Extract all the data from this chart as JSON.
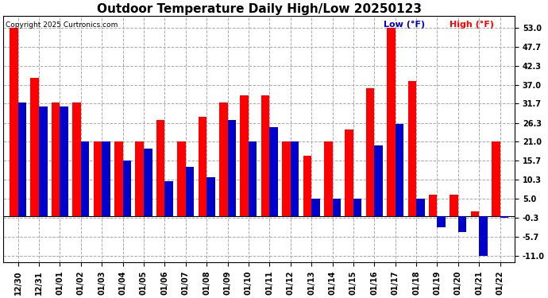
{
  "title": "Outdoor Temperature Daily High/Low 20250123",
  "copyright": "Copyright 2025 Curtronics.com",
  "legend_low": "Low (°F)",
  "legend_high": "High (°F)",
  "dates": [
    "12/30",
    "12/31",
    "01/01",
    "01/02",
    "01/03",
    "01/04",
    "01/05",
    "01/06",
    "01/07",
    "01/08",
    "01/09",
    "01/10",
    "01/11",
    "01/12",
    "01/13",
    "01/14",
    "01/15",
    "01/16",
    "01/17",
    "01/18",
    "01/19",
    "01/20",
    "01/21",
    "01/22"
  ],
  "highs": [
    53.0,
    39.0,
    32.0,
    32.0,
    21.0,
    21.0,
    21.0,
    27.0,
    21.0,
    28.0,
    32.0,
    34.0,
    34.0,
    21.0,
    17.0,
    21.0,
    24.5,
    36.0,
    53.0,
    38.0,
    6.0,
    6.0,
    1.5,
    21.0
  ],
  "lows": [
    32.0,
    31.0,
    31.0,
    21.0,
    21.0,
    15.7,
    19.0,
    10.0,
    14.0,
    11.0,
    27.0,
    21.0,
    25.0,
    21.0,
    5.0,
    5.0,
    5.0,
    20.0,
    26.0,
    5.0,
    -3.0,
    -4.5,
    -11.0,
    -0.3
  ],
  "high_color": "#ff0000",
  "low_color": "#0000cc",
  "ylim_min": -13.0,
  "ylim_max": 56.3,
  "yticks": [
    53.0,
    47.7,
    42.3,
    37.0,
    31.7,
    26.3,
    21.0,
    15.7,
    10.3,
    5.0,
    -0.3,
    -5.7,
    -11.0
  ],
  "background_color": "#ffffff",
  "grid_color": "#aaaaaa",
  "title_fontsize": 11,
  "tick_fontsize": 7,
  "bar_width": 0.4,
  "figwidth": 6.9,
  "figheight": 3.75,
  "dpi": 100
}
